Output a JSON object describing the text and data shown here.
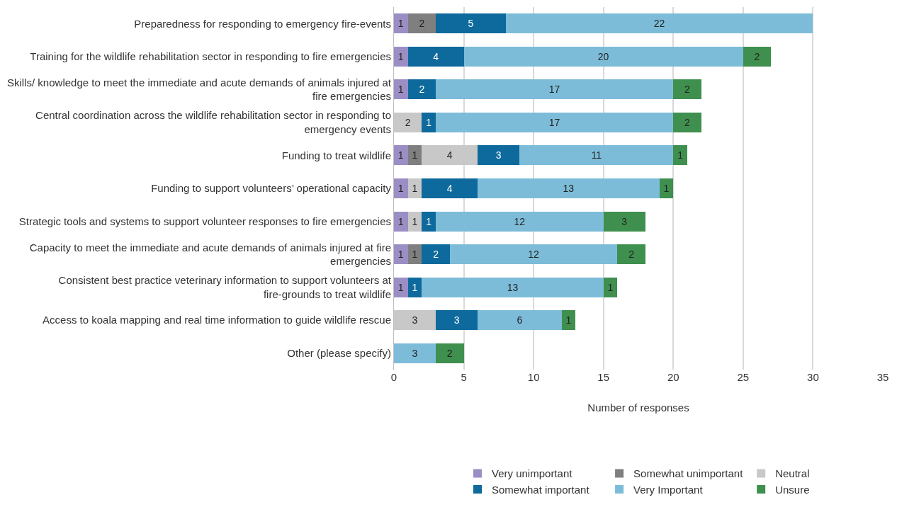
{
  "chart_data": {
    "type": "bar",
    "orientation": "horizontal",
    "stacked": true,
    "xlabel": "Number of responses",
    "categories": [
      "Preparedness for responding to emergency fire-events",
      "Training for the wildlife rehabilitation sector in responding to fire emergencies",
      "Skills/ knowledge to meet the immediate and acute demands of animals injured at fire emergencies",
      "Central coordination across the wildlife rehabilitation sector in responding to emergency events",
      "Funding to treat wildlife",
      "Funding to support volunteers’ operational capacity",
      "Strategic tools and systems to support volunteer responses to fire emergencies",
      "Capacity to meet the immediate and acute demands of animals injured at fire emergencies",
      "Consistent best practice veterinary information to support volunteers at fire-grounds to treat wildlife",
      "Access to koala mapping and real time information to guide wildlife rescue",
      "Other (please specify)"
    ],
    "series": [
      {
        "name": "Very unimportant",
        "color": "#9b8ec4",
        "values": [
          1,
          1,
          1,
          null,
          1,
          1,
          1,
          1,
          1,
          null,
          null
        ]
      },
      {
        "name": "Somewhat unimportant",
        "color": "#7f7f7f",
        "values": [
          2,
          null,
          null,
          null,
          1,
          null,
          null,
          1,
          null,
          null,
          null
        ]
      },
      {
        "name": "Neutral",
        "color": "#c8c8c8",
        "values": [
          null,
          null,
          null,
          2,
          4,
          1,
          1,
          null,
          null,
          3,
          null
        ]
      },
      {
        "name": "Somewhat important",
        "color": "#0e6a9c",
        "values": [
          5,
          4,
          2,
          1,
          3,
          4,
          1,
          2,
          1,
          3,
          null
        ]
      },
      {
        "name": "Very Important",
        "color": "#7dbcd8",
        "values": [
          22,
          20,
          17,
          17,
          11,
          13,
          12,
          12,
          13,
          6,
          3
        ]
      },
      {
        "name": "Unsure",
        "color": "#3f8f4f",
        "values": [
          null,
          2,
          2,
          2,
          1,
          1,
          3,
          2,
          1,
          1,
          2
        ]
      }
    ],
    "xlim": [
      0,
      35
    ],
    "xticks": [
      0,
      5,
      10,
      15,
      20,
      25,
      30,
      35
    ],
    "grid": "x",
    "legend": "bottom",
    "data_labels": true
  }
}
